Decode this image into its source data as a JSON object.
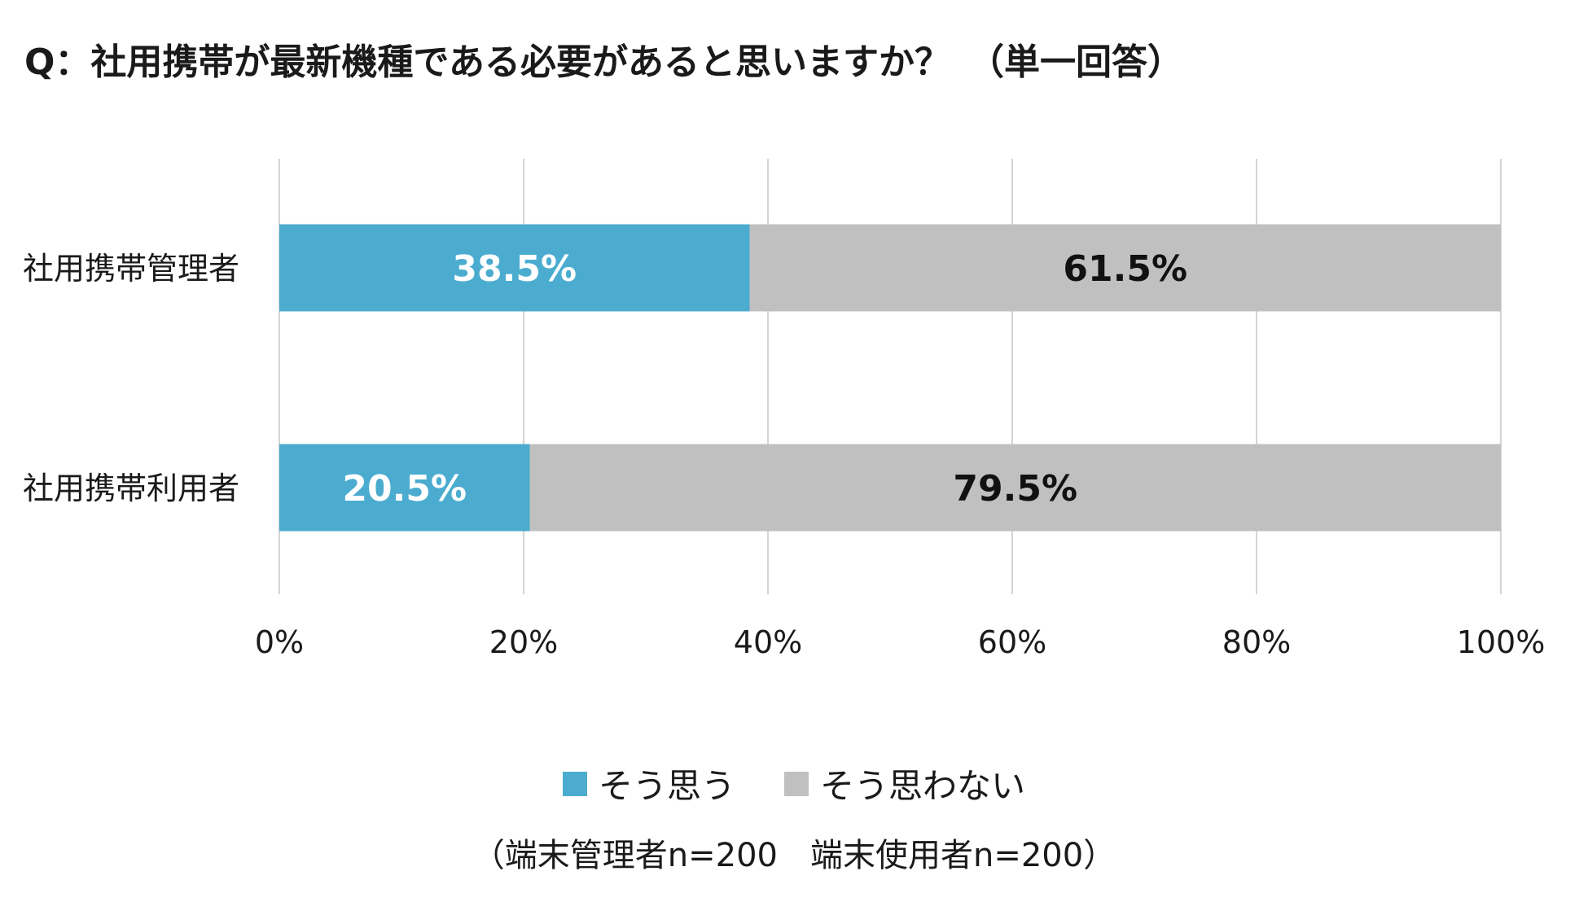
{
  "title": "Q：社用携帯が最新機種である必要があると思いますか？　（単一回答）",
  "note": "（端末管理者n=200　端末使用者n=200）",
  "chart_data": {
    "type": "bar",
    "orientation": "horizontal",
    "stacked": true,
    "categories": [
      "社用携帯管理者",
      "社用携帯利用者"
    ],
    "series": [
      {
        "name": "そう思う",
        "values": [
          38.5,
          20.5
        ],
        "labels": [
          "38.5%",
          "20.5%"
        ],
        "color": "#4BACD0",
        "label_color": "#ffffff"
      },
      {
        "name": "そう思わない",
        "values": [
          61.5,
          79.5
        ],
        "labels": [
          "61.5%",
          "79.5%"
        ],
        "color": "#C0C0C0",
        "label_color": "#111111"
      }
    ],
    "xlim": [
      0,
      100
    ],
    "xticks": [
      0,
      20,
      40,
      60,
      80,
      100
    ],
    "xtick_labels": [
      "0%",
      "20%",
      "40%",
      "60%",
      "80%",
      "100%"
    ],
    "grid": true,
    "legend_position": "bottom-center"
  }
}
